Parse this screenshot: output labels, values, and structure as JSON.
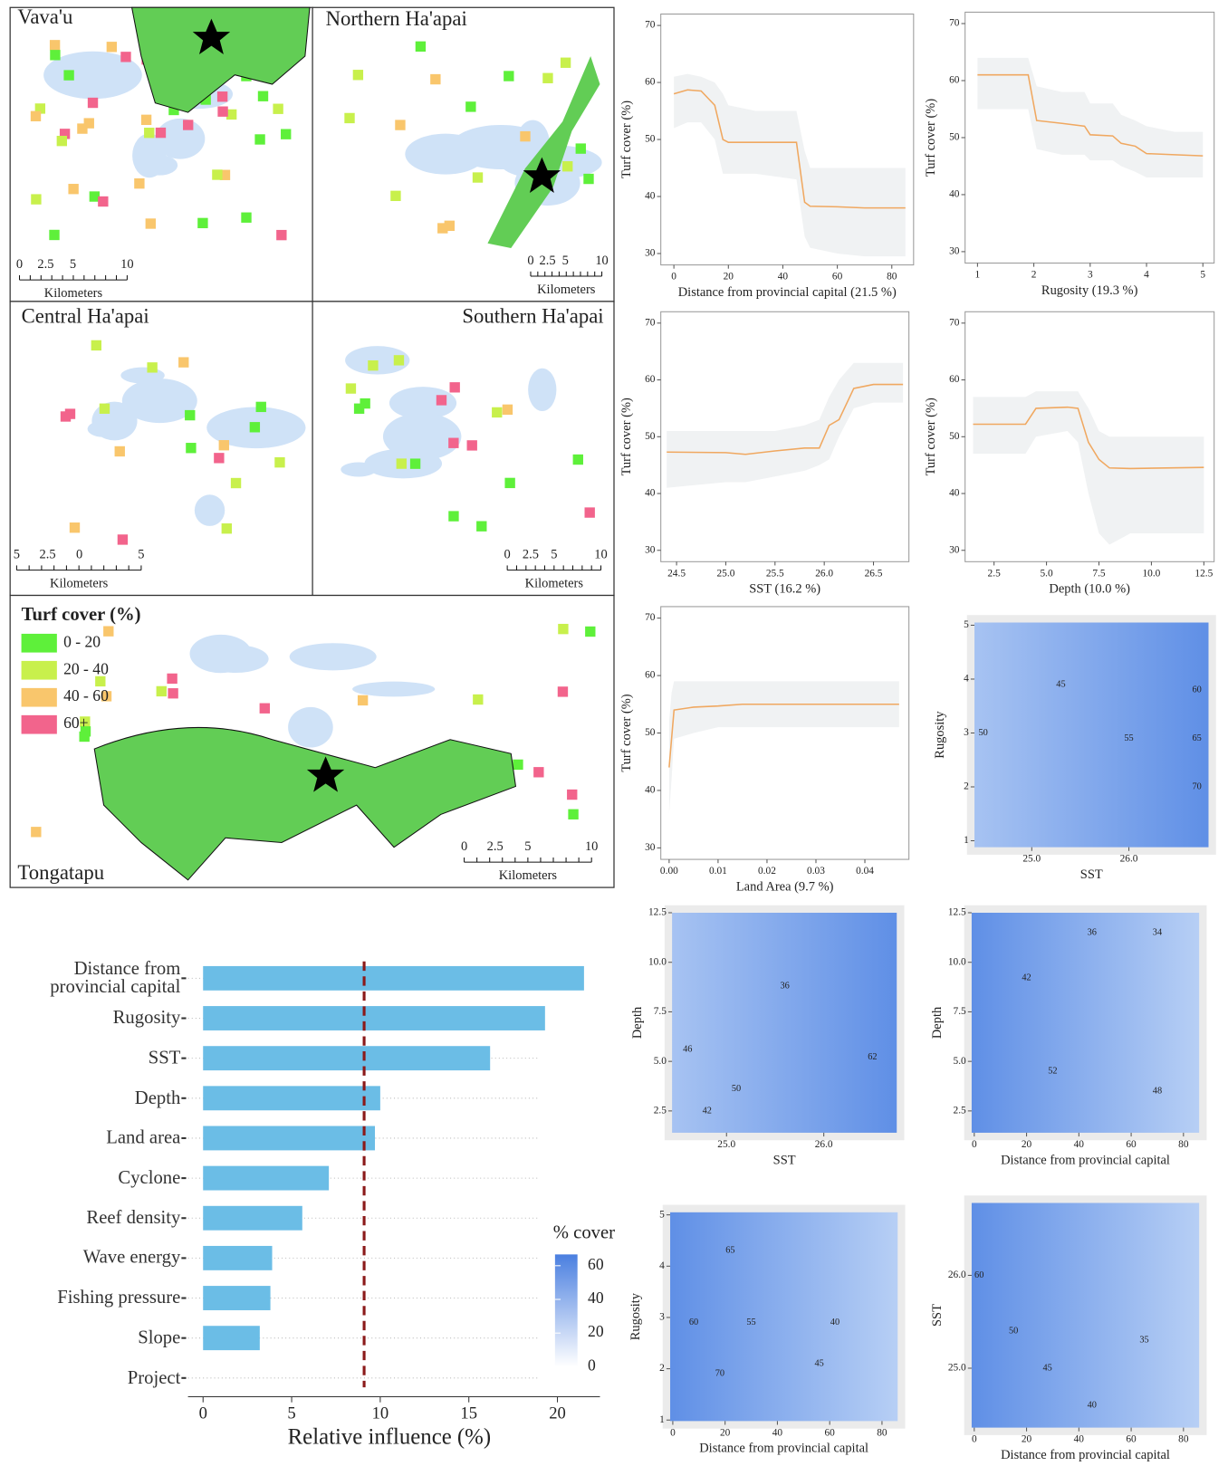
{
  "maps": {
    "panels": [
      {
        "name": "Vava'u",
        "scale": [
          "0",
          "2.5",
          "5",
          "10"
        ],
        "unit": "Kilometers"
      },
      {
        "name": "Northern Ha'apai",
        "scale": [
          "0",
          "2.5",
          "5",
          "10"
        ],
        "unit": "Kilometers"
      },
      {
        "name": "Central Ha'apai",
        "scale": [
          "5",
          "2.5",
          "0",
          "5"
        ],
        "unit": "Kilometers"
      },
      {
        "name": "Southern Ha'apai",
        "scale": [
          "0",
          "2.5",
          "5",
          "10"
        ],
        "unit": "Kilometers"
      },
      {
        "name": "Tongatapu",
        "scale": [
          "0",
          "2.5",
          "5",
          "10"
        ],
        "unit": "Kilometers"
      }
    ],
    "legend": {
      "title": "Turf cover (%)",
      "items": [
        {
          "label": "0 - 20",
          "color": "#5ef03a"
        },
        {
          "label": "20 - 40",
          "color": "#c8f04c"
        },
        {
          "label": "40 - 60",
          "color": "#f9c66c"
        },
        {
          "label": "60+",
          "color": "#f2648c"
        }
      ]
    }
  },
  "colorbar": {
    "title": "% cover",
    "lim": [
      0,
      66.7
    ],
    "ticks": [
      0,
      20,
      40,
      60
    ]
  },
  "chart_data": [
    {
      "type": "bar",
      "categories": [
        "Distance from\nprovincial capital",
        "Rugosity",
        "SST",
        "Depth",
        "Land area",
        "Cyclone",
        "Reef density",
        "Wave energy",
        "Fishing pressure",
        "Slope",
        "Project"
      ],
      "values": [
        21.5,
        19.3,
        16.2,
        10.0,
        9.7,
        7.1,
        5.6,
        3.9,
        3.8,
        3.2,
        0
      ],
      "color": "#6bbde6",
      "reference_line": 9.09,
      "reference_color": "#8b1a1a",
      "xlim": [
        -0.85,
        22.4
      ],
      "xticks": [
        0,
        5,
        10,
        15,
        20
      ],
      "xlabel": "Relative influence (%)",
      "grid": true
    },
    {
      "type": "line",
      "xlabel": "Distance from provincial capital (21.5 %)",
      "ylabel": "Turf cover (%)",
      "xlim": [
        -4.8,
        88
      ],
      "ylim": [
        28,
        72
      ],
      "xticks": [
        0,
        20,
        40,
        60,
        80
      ],
      "yticks": [
        30,
        40,
        50,
        60,
        70
      ],
      "x": [
        0,
        5,
        10,
        15,
        18,
        20,
        30,
        45,
        48,
        50,
        60,
        70,
        85
      ],
      "series": [
        {
          "color": "#f0a860",
          "values": [
            58,
            58.7,
            58.5,
            56,
            50,
            49.5,
            49.5,
            49.5,
            39,
            38.3,
            38.2,
            38,
            38
          ],
          "ci_upper": [
            61,
            61.5,
            61,
            60,
            58,
            56,
            55,
            55,
            48,
            45,
            45,
            45,
            45
          ],
          "ci_lower": [
            52,
            53,
            53,
            50,
            44,
            44,
            44,
            43,
            33,
            31,
            30,
            29.5,
            29.5
          ]
        }
      ]
    },
    {
      "type": "line",
      "xlabel": "Rugosity (19.3 %)",
      "ylabel": "Turf cover (%)",
      "xlim": [
        0.78,
        5.2
      ],
      "ylim": [
        28,
        72
      ],
      "xticks": [
        1,
        2,
        3,
        4,
        5
      ],
      "yticks": [
        30,
        40,
        50,
        60,
        70
      ],
      "x": [
        1,
        1.9,
        2.05,
        2.5,
        2.9,
        3.0,
        3.4,
        3.55,
        3.8,
        4.0,
        4.5,
        5
      ],
      "series": [
        {
          "color": "#f0a860",
          "values": [
            61,
            61,
            53,
            52.5,
            52,
            50.5,
            50.3,
            49,
            48.5,
            47.2,
            47,
            46.8
          ],
          "ci_upper": [
            64,
            64,
            59,
            58,
            58,
            56,
            56,
            54,
            53,
            52,
            51,
            51
          ],
          "ci_lower": [
            55,
            55,
            48,
            47,
            47,
            46,
            46,
            45,
            44,
            43,
            43,
            43
          ]
        }
      ]
    },
    {
      "type": "line",
      "xlabel": "SST (16.2 %)",
      "ylabel": "Turf cover (%)",
      "xlim": [
        24.34,
        26.86
      ],
      "ylim": [
        28,
        72
      ],
      "xticks": [
        24.5,
        {
          "value": 25,
          "label": "25.0"
        },
        25.5,
        {
          "value": 26,
          "label": "26.0"
        },
        26.5
      ],
      "yticks": [
        30,
        40,
        50,
        60,
        70
      ],
      "x": [
        24.4,
        25.0,
        25.2,
        25.5,
        25.8,
        25.95,
        26.05,
        26.15,
        26.3,
        26.5,
        26.8
      ],
      "series": [
        {
          "color": "#f0a860",
          "values": [
            47.3,
            47.2,
            46.9,
            47.5,
            48,
            48,
            52,
            53,
            58.5,
            59.2,
            59.2
          ],
          "ci_upper": [
            51,
            51,
            51,
            51,
            52,
            53,
            57,
            60,
            63,
            63,
            63
          ],
          "ci_lower": [
            41,
            42,
            42,
            43,
            44,
            45,
            46,
            50,
            55,
            56,
            56
          ]
        }
      ]
    },
    {
      "type": "line",
      "xlabel": "Depth (10.0 %)",
      "ylabel": "Turf cover (%)",
      "xlim": [
        1.12,
        12.99
      ],
      "ylim": [
        28,
        72
      ],
      "xticks": [
        2.5,
        {
          "value": 5,
          "label": "5.0"
        },
        7.5,
        {
          "value": 10,
          "label": "10.0"
        },
        12.5
      ],
      "yticks": [
        30,
        40,
        50,
        60,
        70
      ],
      "x": [
        1.5,
        4,
        4.5,
        6,
        6.5,
        7,
        7.5,
        8,
        9,
        12.5
      ],
      "series": [
        {
          "color": "#f0a860",
          "values": [
            52.2,
            52.2,
            55,
            55.2,
            55,
            49,
            46,
            44.5,
            44.4,
            44.6
          ],
          "ci_upper": [
            57,
            57,
            58,
            58,
            58,
            55,
            51,
            50,
            50,
            50
          ],
          "ci_lower": [
            47,
            47,
            50,
            51,
            49,
            40,
            33,
            31,
            33,
            33
          ]
        }
      ]
    },
    {
      "type": "line",
      "xlabel": "Land Area (9.7 %)",
      "ylabel": "Turf cover (%)",
      "xlim": [
        -0.0017,
        0.049
      ],
      "ylim": [
        28,
        72
      ],
      "xticks": [
        {
          "value": 0,
          "label": "0.00"
        },
        0.01,
        0.02,
        0.03,
        0.04
      ],
      "yticks": [
        30,
        40,
        50,
        60,
        70
      ],
      "x": [
        0,
        0.0005,
        0.001,
        0.005,
        0.01,
        0.015,
        0.047
      ],
      "series": [
        {
          "color": "#f0a860",
          "values": [
            44,
            49,
            54,
            54.5,
            54.7,
            55,
            55
          ],
          "ci_upper": [
            52,
            57,
            59,
            59,
            59,
            59,
            59
          ],
          "ci_lower": [
            36,
            42,
            49,
            50,
            51,
            51,
            51
          ]
        }
      ]
    },
    {
      "type": "contour",
      "xlabel": "SST",
      "ylabel": "Rugosity",
      "xlim": [
        24.41,
        26.82
      ],
      "ylim": [
        0.88,
        5.05
      ],
      "xticks": [
        {
          "value": 25,
          "label": "25.0"
        },
        {
          "value": 26,
          "label": "26.0"
        }
      ],
      "yticks": [
        1,
        2,
        3,
        4,
        5
      ],
      "contour_labels": {
        "x": [
          25.3,
          24.5,
          26.7,
          26.7,
          26.7,
          26.0
        ],
        "y": [
          3.9,
          3.0,
          3.8,
          2.9,
          2.0,
          2.9
        ],
        "values": [
          45,
          50,
          60,
          65,
          70,
          55
        ]
      }
    },
    {
      "type": "contour",
      "xlabel": "SST",
      "ylabel": "Depth",
      "xlim": [
        24.44,
        26.75
      ],
      "ylim": [
        1.4,
        12.5
      ],
      "xticks": [
        {
          "value": 25,
          "label": "25.0"
        },
        {
          "value": 26,
          "label": "26.0"
        }
      ],
      "yticks": [
        2.5,
        {
          "value": 5,
          "label": "5.0"
        },
        7.5,
        {
          "value": 10,
          "label": "10.0"
        },
        12.5
      ],
      "contour_labels": {
        "x": [
          25.6,
          24.6,
          26.5,
          24.8,
          25.1
        ],
        "y": [
          8.8,
          5.6,
          5.2,
          2.5,
          3.6
        ],
        "values": [
          36,
          46,
          62,
          42,
          50
        ]
      }
    },
    {
      "type": "contour",
      "xlabel": "Distance from provincial capital",
      "ylabel": "Depth",
      "xlim": [
        -1,
        86
      ],
      "ylim": [
        1.4,
        12.5
      ],
      "xticks": [
        0,
        20,
        40,
        60,
        80
      ],
      "yticks": [
        2.5,
        {
          "value": 5,
          "label": "5.0"
        },
        7.5,
        {
          "value": 10,
          "label": "10.0"
        },
        12.5
      ],
      "contour_labels": {
        "x": [
          20,
          45,
          70,
          30,
          70
        ],
        "y": [
          9.2,
          11.5,
          11.5,
          4.5,
          3.5
        ],
        "values": [
          42,
          36,
          34,
          52,
          48
        ]
      }
    },
    {
      "type": "contour",
      "xlabel": "Distance from provincial capital",
      "ylabel": "Rugosity",
      "xlim": [
        -1,
        86
      ],
      "ylim": [
        0.98,
        5.05
      ],
      "xticks": [
        0,
        20,
        40,
        60,
        80
      ],
      "yticks": [
        1,
        2,
        3,
        4,
        5
      ],
      "contour_labels": {
        "x": [
          22,
          30,
          8,
          62,
          56,
          18
        ],
        "y": [
          4.3,
          2.9,
          2.9,
          2.9,
          2.1,
          1.9
        ],
        "values": [
          65,
          55,
          60,
          40,
          45,
          70
        ]
      }
    },
    {
      "type": "contour",
      "xlabel": "Distance from provincial capital",
      "ylabel": "SST",
      "xlim": [
        -1,
        86
      ],
      "ylim": [
        24.36,
        26.78
      ],
      "xticks": [
        0,
        20,
        40,
        60,
        80
      ],
      "yticks": [
        {
          "value": 25,
          "label": "25.0"
        },
        {
          "value": 26,
          "label": "26.0"
        }
      ],
      "contour_labels": {
        "x": [
          0,
          15,
          28,
          65,
          45
        ],
        "y": [
          26.0,
          25.4,
          25.0,
          25.3,
          24.6
        ],
        "values": [
          60,
          50,
          45,
          35,
          40
        ]
      }
    }
  ]
}
